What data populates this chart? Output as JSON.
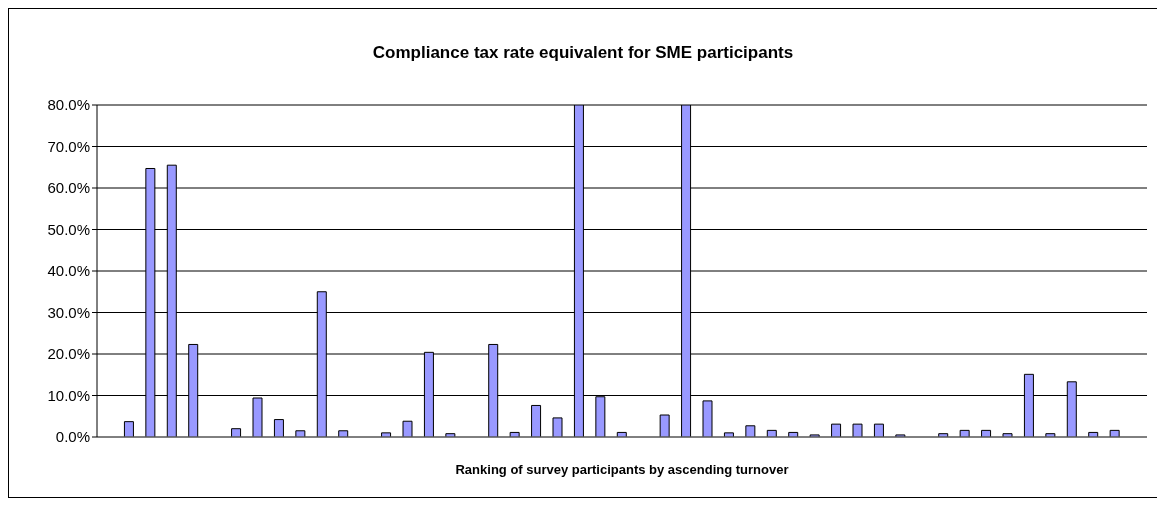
{
  "chart_data": {
    "type": "bar",
    "title": "Compliance tax rate equivalent for SME participants",
    "xlabel": "Ranking of survey participants by ascending turnover",
    "categories": [
      null,
      null,
      null,
      null,
      null,
      null,
      null,
      null,
      null,
      null,
      null,
      null,
      null,
      null,
      null,
      null,
      null,
      null,
      null,
      null,
      null,
      null,
      null,
      null,
      null,
      null,
      null,
      null,
      null,
      null,
      null,
      null,
      null,
      null,
      null,
      null,
      null,
      null,
      null,
      null,
      null,
      null,
      null,
      null,
      null,
      null,
      null,
      null,
      null
    ],
    "values": [
      null,
      3.7,
      64.7,
      65.5,
      22.3,
      null,
      2.0,
      9.4,
      4.2,
      1.5,
      35.0,
      1.5,
      null,
      1.0,
      3.8,
      20.4,
      0.8,
      null,
      22.3,
      1.1,
      7.6,
      4.6,
      80,
      9.7,
      1.1,
      null,
      5.3,
      80,
      8.7,
      1.0,
      2.7,
      1.6,
      1.1,
      0.5,
      3.1,
      3.1,
      3.1,
      0.5,
      null,
      0.8,
      1.6,
      1.6,
      0.8,
      15.1,
      0.8,
      13.3,
      1.1,
      1.6,
      null
    ],
    "color": "#9999ff",
    "ylim": [
      0,
      80
    ],
    "yticks": [
      {
        "value": 0,
        "label": "0.0%"
      },
      {
        "value": 10,
        "label": "10.0%"
      },
      {
        "value": 20,
        "label": "20.0%"
      },
      {
        "value": 30,
        "label": "30.0%"
      },
      {
        "value": 40,
        "label": "40.0%"
      },
      {
        "value": 50,
        "label": "50.0%"
      },
      {
        "value": 60,
        "label": "60.0%"
      },
      {
        "value": 70,
        "label": "70.0%"
      },
      {
        "value": 80,
        "label": "80.0%"
      }
    ],
    "grid": "y",
    "legend": false
  }
}
